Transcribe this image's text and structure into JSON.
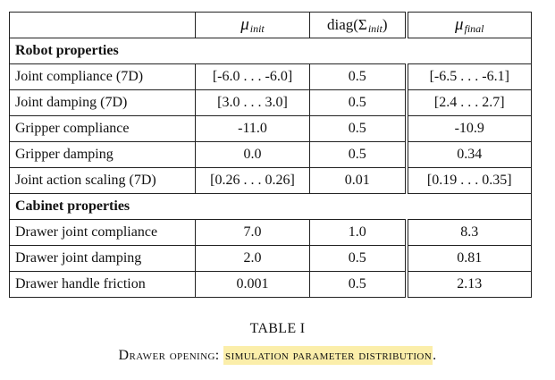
{
  "table": {
    "headers": {
      "col_param": "",
      "col_init": {
        "symbol": "μ",
        "subscript": "init"
      },
      "col_diag": {
        "prefix": "diag(",
        "symbol": "Σ",
        "subscript": "init",
        "suffix": ")"
      },
      "col_final": {
        "symbol": "μ",
        "subscript": "final"
      }
    },
    "sections": [
      {
        "title": "Robot properties",
        "rows": [
          {
            "name": "Joint compliance (7D)",
            "init": "[-6.0 . . . -6.0]",
            "diag": "0.5",
            "final": "[-6.5 . . . -6.1]"
          },
          {
            "name": "Joint damping (7D)",
            "init": "[3.0 . . . 3.0]",
            "diag": "0.5",
            "final": "[2.4 . . . 2.7]"
          },
          {
            "name": "Gripper compliance",
            "init": "-11.0",
            "diag": "0.5",
            "final": "-10.9"
          },
          {
            "name": "Gripper damping",
            "init": "0.0",
            "diag": "0.5",
            "final": "0.34"
          },
          {
            "name": "Joint action scaling (7D)",
            "init": "[0.26 . . . 0.26]",
            "diag": "0.01",
            "final": "[0.19 . . . 0.35]"
          }
        ]
      },
      {
        "title": "Cabinet properties",
        "rows": [
          {
            "name": "Drawer joint compliance",
            "init": "7.0",
            "diag": "1.0",
            "final": "8.3"
          },
          {
            "name": "Drawer joint damping",
            "init": "2.0",
            "diag": "0.5",
            "final": "0.81"
          },
          {
            "name": "Drawer handle friction",
            "init": "0.001",
            "diag": "0.5",
            "final": "2.13"
          }
        ]
      }
    ]
  },
  "caption": {
    "number": "TABLE I",
    "prefix": "Drawer opening:",
    "highlighted": "simulation parameter distribution",
    "suffix": "."
  },
  "colors": {
    "highlight": "#fbeeaa",
    "rule": "#222222"
  }
}
